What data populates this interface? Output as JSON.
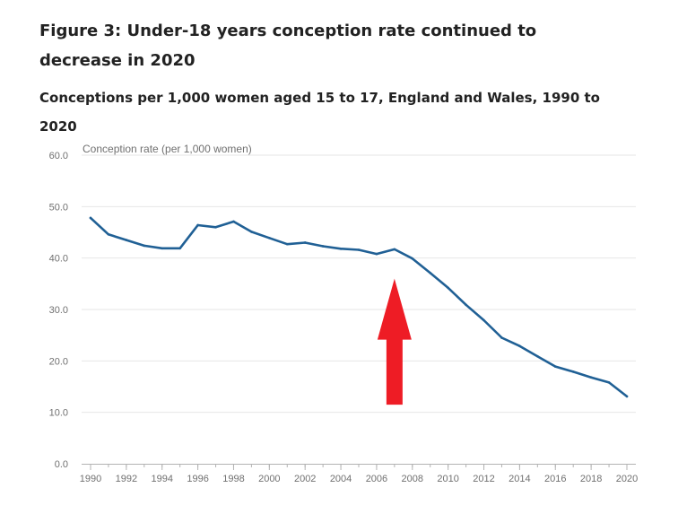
{
  "title": "Figure 3: Under-18 years conception rate continued to decrease in 2020",
  "subtitle": "Conceptions per 1,000 women aged 15 to 17, England and Wales, 1990 to 2020",
  "chart_data": {
    "type": "line",
    "title": "Figure 3: Under-18 years conception rate continued to decrease in 2020",
    "subtitle": "Conceptions per 1,000 women aged 15 to 17, England and Wales, 1990 to 2020",
    "xlabel": "",
    "ylabel": "Conception rate (per 1,000 women)",
    "ylim": [
      0,
      60
    ],
    "xlim": [
      1990,
      2020
    ],
    "yticks": [
      "0.0",
      "10.0",
      "20.0",
      "30.0",
      "40.0",
      "50.0",
      "60.0"
    ],
    "xticks": [
      "1990",
      "1992",
      "1994",
      "1996",
      "1998",
      "2000",
      "2002",
      "2004",
      "2006",
      "2008",
      "2010",
      "2012",
      "2014",
      "2016",
      "2018",
      "2020"
    ],
    "grid": true,
    "series": [
      {
        "name": "Conception rate",
        "color": "#206095",
        "x": [
          1990,
          1991,
          1992,
          1993,
          1994,
          1995,
          1996,
          1997,
          1998,
          1999,
          2000,
          2001,
          2002,
          2003,
          2004,
          2005,
          2006,
          2007,
          2008,
          2009,
          2010,
          2011,
          2012,
          2013,
          2014,
          2015,
          2016,
          2017,
          2018,
          2019,
          2020
        ],
        "values": [
          47.8,
          44.6,
          43.5,
          42.4,
          41.9,
          41.9,
          46.4,
          46.0,
          47.1,
          45.1,
          43.9,
          42.7,
          43.0,
          42.3,
          41.8,
          41.6,
          40.8,
          41.7,
          39.9,
          37.1,
          34.2,
          30.9,
          27.9,
          24.5,
          22.9,
          20.9,
          18.9,
          17.9,
          16.8,
          15.8,
          13.1
        ]
      }
    ],
    "annotations": [
      {
        "type": "arrow",
        "color": "#ee1c25",
        "direction": "up",
        "x": 2007,
        "y_from": 11.5,
        "y_to": 36.0
      }
    ]
  }
}
